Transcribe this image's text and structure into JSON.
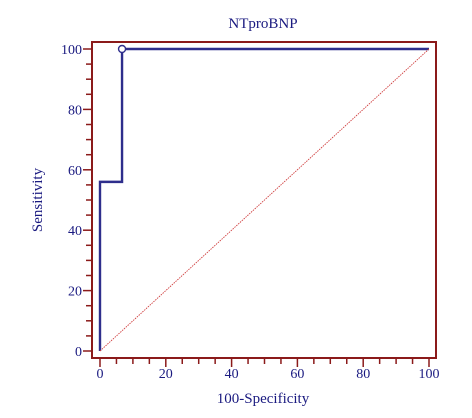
{
  "chart_data": {
    "type": "line",
    "title": "NTproBNP",
    "xlabel": "100-Specificity",
    "ylabel": "Sensitivity",
    "xlim": [
      0,
      100
    ],
    "ylim": [
      0,
      100
    ],
    "x_ticks": [
      0,
      20,
      40,
      60,
      80,
      100
    ],
    "y_ticks": [
      0,
      20,
      40,
      60,
      80,
      100
    ],
    "series": [
      {
        "x": [
          0,
          0,
          6.7,
          6.7,
          100
        ],
        "y": [
          0,
          56,
          56,
          100,
          100
        ],
        "color": "#2e2e8c"
      },
      {
        "x": [
          0,
          100
        ],
        "y": [
          0,
          100
        ],
        "color": "#d04040",
        "style": "dotted"
      }
    ],
    "markers": [
      {
        "x": 6.7,
        "y": 100,
        "shape": "open-circle"
      }
    ],
    "grid": false,
    "frame_color": "#8b1a1a",
    "text_color": "#1a1a80"
  }
}
